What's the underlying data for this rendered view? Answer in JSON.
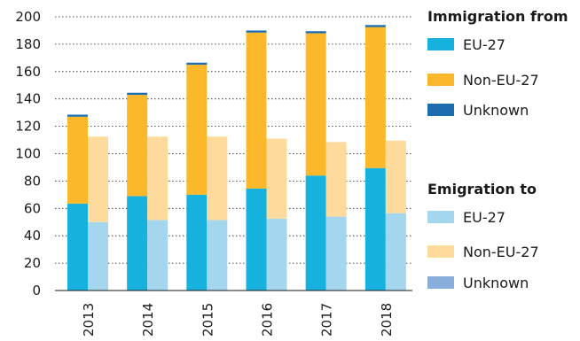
{
  "chart_data": {
    "type": "bar",
    "stacked": true,
    "categories": [
      "2013",
      "2014",
      "2015",
      "2016",
      "2017",
      "2018"
    ],
    "ylim": [
      0,
      200
    ],
    "yticks": [
      0,
      20,
      40,
      60,
      80,
      100,
      120,
      140,
      160,
      180,
      200
    ],
    "grid": true,
    "legend_position": "right",
    "groups": [
      {
        "title": "Immigration from",
        "series": [
          {
            "name": "EU-27",
            "color": "#16b1dd",
            "values": [
              63.5,
              69,
              70,
              74.5,
              84,
              89.5
            ]
          },
          {
            "name": "Non-EU-27",
            "color": "#fbb82b",
            "values": [
              63.5,
              74,
              95,
              114,
              104,
              103
            ]
          },
          {
            "name": "Unknown",
            "color": "#1b6db0",
            "values": [
              1.5,
              1.5,
              1.5,
              1.5,
              1.5,
              1.5
            ]
          }
        ]
      },
      {
        "title": "Emigration to",
        "series": [
          {
            "name": "EU-27",
            "color": "#a4d6ee",
            "values": [
              50,
              51.5,
              51.5,
              52.5,
              54,
              56.5
            ]
          },
          {
            "name": "Non-EU-27",
            "color": "#fedb9d",
            "values": [
              62.5,
              61,
              61,
              58.5,
              54.5,
              53
            ]
          },
          {
            "name": "Unknown",
            "color": "#8aaedc",
            "values": [
              0,
              0,
              0,
              0,
              0,
              0
            ]
          }
        ]
      }
    ]
  }
}
